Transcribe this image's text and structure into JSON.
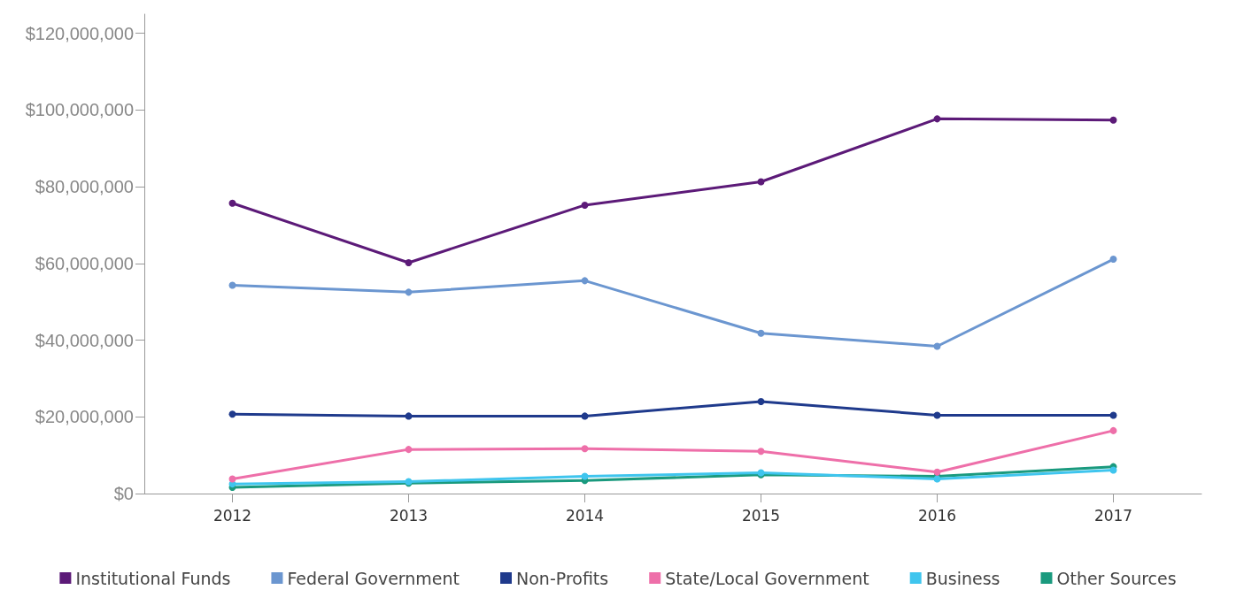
{
  "chart_data": {
    "type": "line",
    "categories": [
      "2012",
      "2013",
      "2014",
      "2015",
      "2016",
      "2017"
    ],
    "series": [
      {
        "name": "Institutional Funds",
        "color": "#5c1a78",
        "values": [
          75700000,
          60200000,
          75200000,
          81300000,
          97700000,
          97400000
        ]
      },
      {
        "name": "Federal Government",
        "color": "#6b96d0",
        "values": [
          54300000,
          52500000,
          55500000,
          41800000,
          38400000,
          61100000
        ]
      },
      {
        "name": "Non-Profits",
        "color": "#1f3a8c",
        "values": [
          20700000,
          20200000,
          20200000,
          24000000,
          20400000,
          20400000
        ]
      },
      {
        "name": "State/Local Government",
        "color": "#ee6fa9",
        "values": [
          3800000,
          11500000,
          11700000,
          11000000,
          5600000,
          16400000
        ]
      },
      {
        "name": "Business",
        "color": "#3fc5ee",
        "values": [
          2500000,
          3100000,
          4500000,
          5400000,
          3800000,
          6100000
        ]
      },
      {
        "name": "Other Sources",
        "color": "#1a9a7e",
        "values": [
          1600000,
          2700000,
          3400000,
          4900000,
          4500000,
          7000000
        ]
      }
    ],
    "ylim": [
      0,
      125000000
    ],
    "yticks": [
      {
        "value": 0,
        "label": "$0"
      },
      {
        "value": 20000000,
        "label": "$20,000,000"
      },
      {
        "value": 40000000,
        "label": "$40,000,000"
      },
      {
        "value": 60000000,
        "label": "$60,000,000"
      },
      {
        "value": 80000000,
        "label": "$80,000,000"
      },
      {
        "value": 100000000,
        "label": "$100,000,000"
      },
      {
        "value": 120000000,
        "label": "$120,000,000"
      }
    ],
    "grid": false,
    "legend": "bottom",
    "marker": "circle",
    "line_style": "solid"
  }
}
